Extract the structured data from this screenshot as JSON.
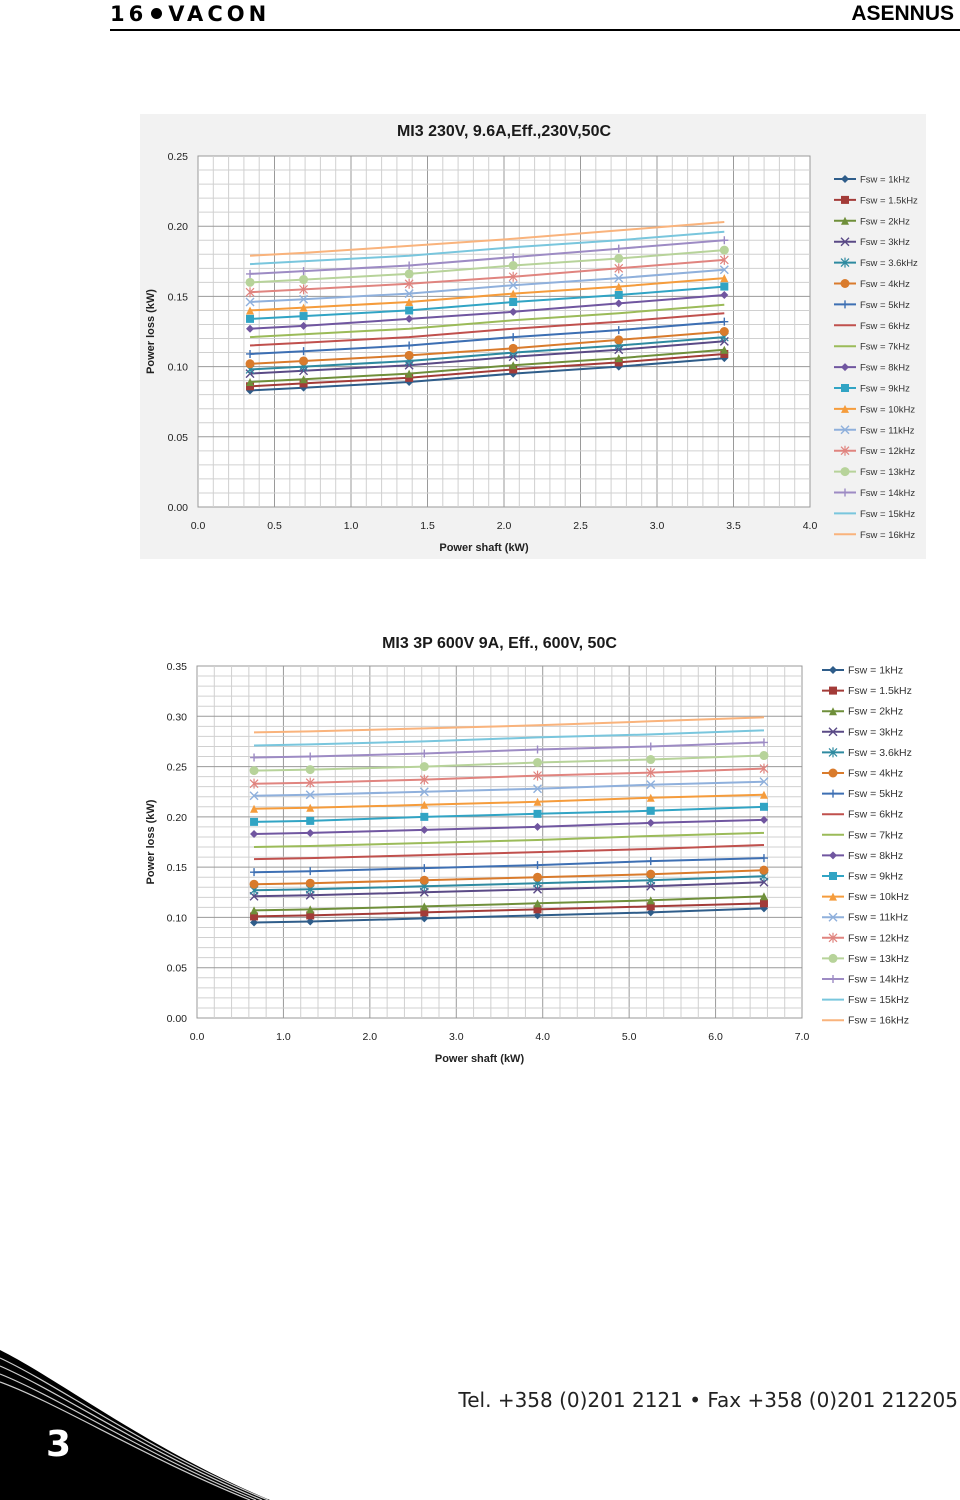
{
  "header": {
    "page_number": "16",
    "brand": "VACON",
    "section": "ASENNUS"
  },
  "footer": {
    "contact": "Tel. +358 (0)201 2121 • Fax +358 (0)201 212205",
    "chapter": "3"
  },
  "legend_labels": [
    "Fsw = 1kHz",
    "Fsw = 1.5kHz",
    "Fsw = 2kHz",
    "Fsw = 3kHz",
    "Fsw = 3.6kHz",
    "Fsw = 4kHz",
    "Fsw = 5kHz",
    "Fsw = 6kHz",
    "Fsw = 7kHz",
    "Fsw = 8kHz",
    "Fsw = 9kHz",
    "Fsw = 10kHz",
    "Fsw = 11kHz",
    "Fsw = 12kHz",
    "Fsw = 13kHz",
    "Fsw = 14kHz",
    "Fsw = 15kHz",
    "Fsw = 16kHz"
  ],
  "series_styles": [
    {
      "color": "#2f5d8a",
      "marker": "diamond"
    },
    {
      "color": "#a33b38",
      "marker": "square"
    },
    {
      "color": "#6f8f3a",
      "marker": "triangle"
    },
    {
      "color": "#5a4a86",
      "marker": "x"
    },
    {
      "color": "#2e8aa0",
      "marker": "star"
    },
    {
      "color": "#d97b2c",
      "marker": "circle"
    },
    {
      "color": "#3d6fb3",
      "marker": "plus"
    },
    {
      "color": "#c0504d",
      "marker": "none"
    },
    {
      "color": "#9bbb59",
      "marker": "none"
    },
    {
      "color": "#7056a0",
      "marker": "diamond"
    },
    {
      "color": "#31a4c4",
      "marker": "square"
    },
    {
      "color": "#f59c3c",
      "marker": "triangle"
    },
    {
      "color": "#8fb0dc",
      "marker": "x"
    },
    {
      "color": "#e0847f",
      "marker": "star"
    },
    {
      "color": "#b7d39a",
      "marker": "circle"
    },
    {
      "color": "#9d8bc4",
      "marker": "plus"
    },
    {
      "color": "#79c6dd",
      "marker": "none"
    },
    {
      "color": "#f9b37c",
      "marker": "none"
    }
  ],
  "chart_data": [
    {
      "type": "line",
      "title": "MI3 230V, 9.6A,Eff.,230V,50C",
      "xlabel": "Power shaft (kW)",
      "ylabel": "Power loss (kW)",
      "xlim": [
        0,
        4.0
      ],
      "ylim": [
        0,
        0.25
      ],
      "xticks": [
        "0.0",
        "0.5",
        "1.0",
        "1.5",
        "2.0",
        "2.5",
        "3.0",
        "3.5",
        "4.0"
      ],
      "yticks": [
        "0.00",
        "0.05",
        "0.10",
        "0.15",
        "0.20",
        "0.25"
      ],
      "grid": true,
      "legend": "right",
      "x": [
        0.34,
        0.69,
        1.38,
        2.06,
        2.75,
        3.44
      ],
      "series": [
        {
          "name": "Fsw = 1kHz",
          "values": [
            0.083,
            0.085,
            0.089,
            0.095,
            0.1,
            0.106
          ]
        },
        {
          "name": "Fsw = 1.5kHz",
          "values": [
            0.086,
            0.088,
            0.092,
            0.098,
            0.103,
            0.109
          ]
        },
        {
          "name": "Fsw = 2kHz",
          "values": [
            0.089,
            0.091,
            0.095,
            0.101,
            0.106,
            0.112
          ]
        },
        {
          "name": "Fsw = 3kHz",
          "values": [
            0.095,
            0.097,
            0.101,
            0.107,
            0.112,
            0.118
          ]
        },
        {
          "name": "Fsw = 3.6kHz",
          "values": [
            0.098,
            0.1,
            0.104,
            0.11,
            0.115,
            0.121
          ]
        },
        {
          "name": "Fsw = 4kHz",
          "values": [
            0.102,
            0.104,
            0.108,
            0.113,
            0.119,
            0.125
          ]
        },
        {
          "name": "Fsw = 5kHz",
          "values": [
            0.109,
            0.111,
            0.115,
            0.121,
            0.126,
            0.132
          ]
        },
        {
          "name": "Fsw = 6kHz",
          "values": [
            0.115,
            0.117,
            0.121,
            0.127,
            0.132,
            0.138
          ]
        },
        {
          "name": "Fsw = 7kHz",
          "values": [
            0.121,
            0.123,
            0.127,
            0.133,
            0.138,
            0.144
          ]
        },
        {
          "name": "Fsw = 8kHz",
          "values": [
            0.127,
            0.129,
            0.134,
            0.139,
            0.145,
            0.151
          ]
        },
        {
          "name": "Fsw = 9kHz",
          "values": [
            0.134,
            0.136,
            0.14,
            0.146,
            0.151,
            0.157
          ]
        },
        {
          "name": "Fsw = 10kHz",
          "values": [
            0.14,
            0.142,
            0.146,
            0.152,
            0.157,
            0.163
          ]
        },
        {
          "name": "Fsw = 11kHz",
          "values": [
            0.146,
            0.148,
            0.152,
            0.158,
            0.163,
            0.169
          ]
        },
        {
          "name": "Fsw = 12kHz",
          "values": [
            0.153,
            0.155,
            0.159,
            0.164,
            0.17,
            0.176
          ]
        },
        {
          "name": "Fsw = 13kHz",
          "values": [
            0.16,
            0.162,
            0.166,
            0.172,
            0.177,
            0.183
          ]
        },
        {
          "name": "Fsw = 14kHz",
          "values": [
            0.166,
            0.168,
            0.172,
            0.178,
            0.184,
            0.19
          ]
        },
        {
          "name": "Fsw = 15kHz",
          "values": [
            0.173,
            0.175,
            0.179,
            0.185,
            0.19,
            0.196
          ]
        },
        {
          "name": "Fsw = 16kHz",
          "values": [
            0.179,
            0.181,
            0.186,
            0.191,
            0.197,
            0.203
          ]
        }
      ]
    },
    {
      "type": "line",
      "title": "MI3 3P 600V 9A, Eff., 600V, 50C",
      "xlabel": "Power shaft (kW)",
      "ylabel": "Power loss (kW)",
      "xlim": [
        0,
        7.0
      ],
      "ylim": [
        0,
        0.35
      ],
      "xticks": [
        "0.0",
        "1.0",
        "2.0",
        "3.0",
        "4.0",
        "5.0",
        "6.0",
        "7.0"
      ],
      "yticks": [
        "0.00",
        "0.05",
        "0.10",
        "0.15",
        "0.20",
        "0.25",
        "0.30",
        "0.35"
      ],
      "grid": true,
      "legend": "right",
      "x": [
        0.66,
        1.31,
        2.63,
        3.94,
        5.25,
        6.56
      ],
      "series": [
        {
          "name": "Fsw = 1kHz",
          "values": [
            0.095,
            0.096,
            0.099,
            0.102,
            0.105,
            0.109
          ]
        },
        {
          "name": "Fsw = 1.5kHz",
          "values": [
            0.101,
            0.102,
            0.105,
            0.108,
            0.111,
            0.114
          ]
        },
        {
          "name": "Fsw = 2kHz",
          "values": [
            0.107,
            0.108,
            0.111,
            0.114,
            0.117,
            0.121
          ]
        },
        {
          "name": "Fsw = 3kHz",
          "values": [
            0.121,
            0.122,
            0.125,
            0.128,
            0.131,
            0.135
          ]
        },
        {
          "name": "Fsw = 3.6kHz",
          "values": [
            0.127,
            0.128,
            0.131,
            0.134,
            0.137,
            0.141
          ]
        },
        {
          "name": "Fsw = 4kHz",
          "values": [
            0.133,
            0.134,
            0.137,
            0.14,
            0.143,
            0.147
          ]
        },
        {
          "name": "Fsw = 5kHz",
          "values": [
            0.145,
            0.146,
            0.149,
            0.152,
            0.156,
            0.159
          ]
        },
        {
          "name": "Fsw = 6kHz",
          "values": [
            0.158,
            0.159,
            0.162,
            0.165,
            0.168,
            0.172
          ]
        },
        {
          "name": "Fsw = 7kHz",
          "values": [
            0.17,
            0.171,
            0.174,
            0.177,
            0.181,
            0.184
          ]
        },
        {
          "name": "Fsw = 8kHz",
          "values": [
            0.183,
            0.184,
            0.187,
            0.19,
            0.194,
            0.197
          ]
        },
        {
          "name": "Fsw = 9kHz",
          "values": [
            0.195,
            0.196,
            0.2,
            0.203,
            0.206,
            0.21
          ]
        },
        {
          "name": "Fsw = 10kHz",
          "values": [
            0.208,
            0.209,
            0.212,
            0.215,
            0.219,
            0.222
          ]
        },
        {
          "name": "Fsw = 11kHz",
          "values": [
            0.221,
            0.222,
            0.225,
            0.228,
            0.232,
            0.235
          ]
        },
        {
          "name": "Fsw = 12kHz",
          "values": [
            0.233,
            0.234,
            0.237,
            0.241,
            0.244,
            0.248
          ]
        },
        {
          "name": "Fsw = 13kHz",
          "values": [
            0.246,
            0.247,
            0.25,
            0.254,
            0.257,
            0.261
          ]
        },
        {
          "name": "Fsw = 14kHz",
          "values": [
            0.259,
            0.26,
            0.263,
            0.267,
            0.27,
            0.274
          ]
        },
        {
          "name": "Fsw = 15kHz",
          "values": [
            0.271,
            0.272,
            0.275,
            0.279,
            0.282,
            0.286
          ]
        },
        {
          "name": "Fsw = 16kHz",
          "values": [
            0.284,
            0.285,
            0.288,
            0.291,
            0.295,
            0.299
          ]
        }
      ]
    }
  ]
}
